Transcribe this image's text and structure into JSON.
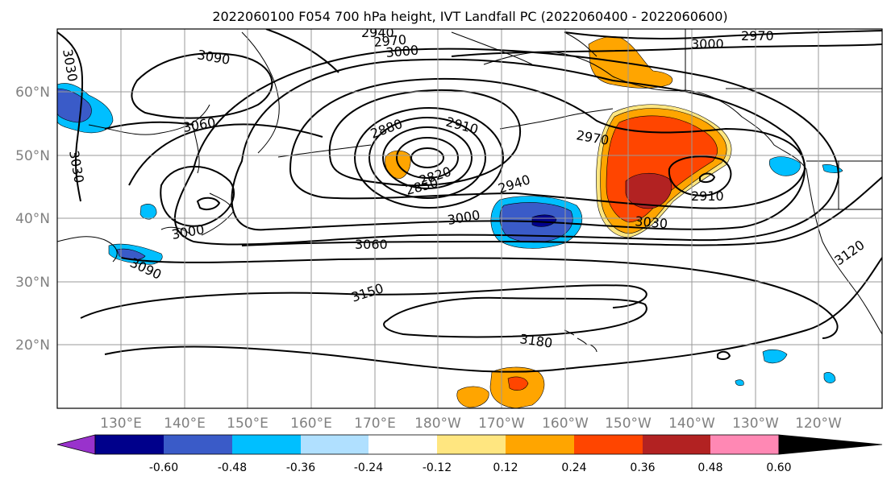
{
  "title": "2022060100 F054 700 hPa height, IVT Landfall PC (2022060400 - 2022060600)",
  "longitude_labels": [
    "130°E",
    "140°E",
    "150°E",
    "160°E",
    "170°E",
    "180°W",
    "170°W",
    "160°W",
    "150°W",
    "140°W",
    "130°W",
    "120°W"
  ],
  "latitude_labels": [
    "60°N",
    "50°N",
    "40°N",
    "30°N",
    "20°N"
  ],
  "contour_labels": [
    "3030",
    "3090",
    "3060",
    "3030",
    "2940",
    "2970",
    "3000",
    "3000",
    "2970",
    "2880",
    "2910",
    "2970",
    "2820",
    "2850",
    "2940",
    "2910",
    "3000",
    "3030",
    "3000",
    "3060",
    "3090",
    "3150",
    "3180",
    "3120"
  ],
  "colorbar": {
    "tick_labels": [
      "-0.60",
      "-0.48",
      "-0.36",
      "-0.24",
      "-0.12",
      "0.12",
      "0.24",
      "0.36",
      "0.48",
      "0.60"
    ],
    "colors": [
      "#9932CC",
      "#00008B",
      "#3A5BC8",
      "#00BFFF",
      "#B0E0FF",
      "#FFFFFF",
      "#FFE680",
      "#FFA500",
      "#FF4500",
      "#B22222",
      "#FF88B4"
    ]
  },
  "fill_colors": {
    "blue_dark": "#00008B",
    "blue_mid": "#3A5BC8",
    "blue_light": "#00BFFF",
    "orange": "#FFA500",
    "red_orange": "#FF4500",
    "dark_red": "#B22222",
    "yellow": "#FFE680"
  }
}
